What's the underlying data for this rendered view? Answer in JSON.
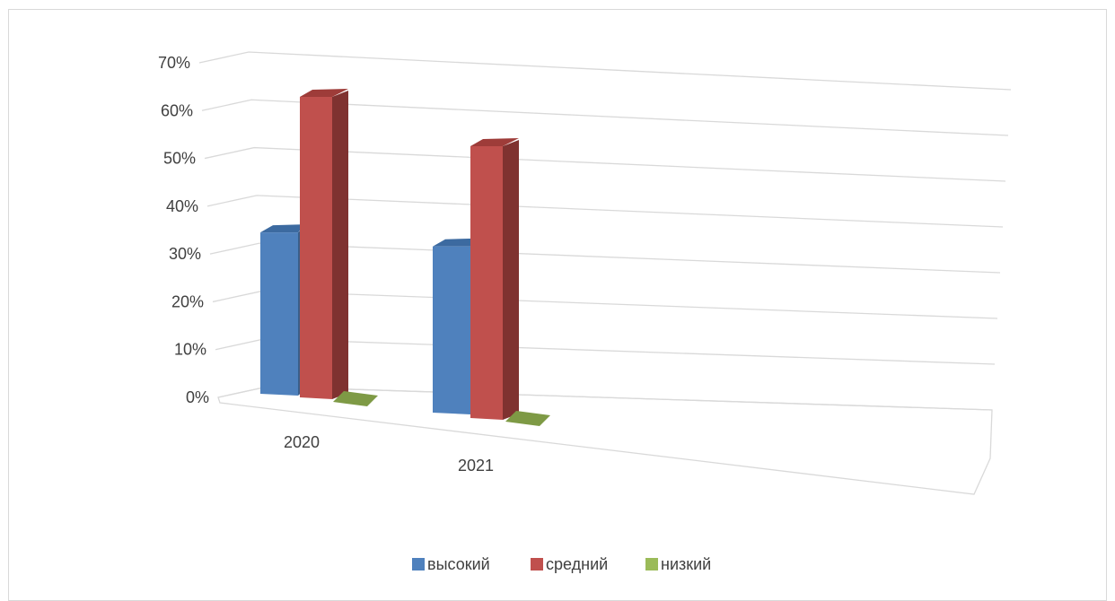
{
  "chart_data": {
    "type": "bar",
    "categories": [
      "2020",
      "2021"
    ],
    "series": [
      {
        "name": "высокий",
        "values": [
          34,
          35
        ]
      },
      {
        "name": "средний",
        "values": [
          63,
          57
        ]
      },
      {
        "name": "низкий",
        "values": [
          0,
          0
        ]
      }
    ],
    "y_ticks": [
      "0%",
      "10%",
      "20%",
      "30%",
      "40%",
      "50%",
      "60%",
      "70%"
    ],
    "ylim": [
      0,
      70
    ],
    "grid": true,
    "legend_position": "bottom",
    "colors": [
      "#4f81bd",
      "#c0504d",
      "#9bbb59"
    ],
    "side_colors": [
      "#3a5f8a",
      "#7f3230",
      "#6f8a3c"
    ],
    "top_colors": [
      "#3c6aa0",
      "#9e3c39",
      "#7e9a45"
    ]
  }
}
